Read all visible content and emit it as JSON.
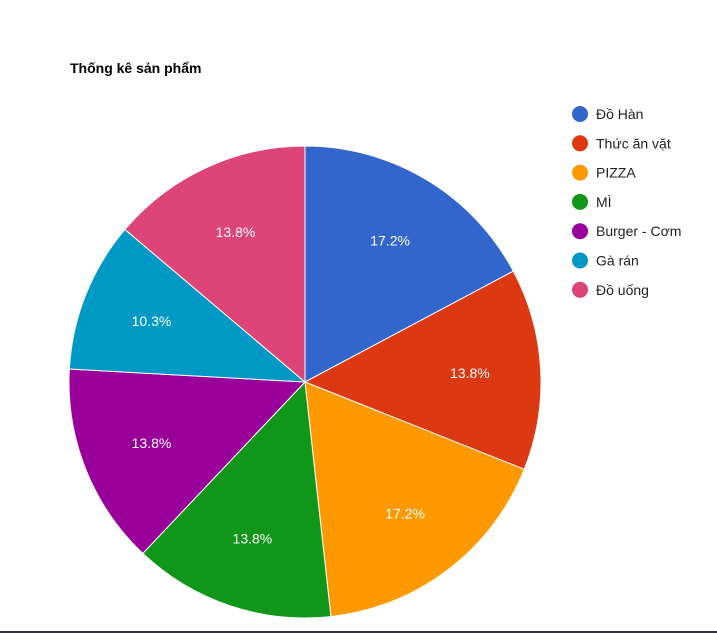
{
  "chart_data": {
    "type": "pie",
    "title": "Thống kê sản phẩm",
    "legend_position": "right",
    "categories": [
      "Đồ Hàn",
      "Thức ăn vặt",
      "PIZZA",
      "MÌ",
      "Burger - Cơm",
      "Gà rán",
      "Đồ uống"
    ],
    "values": [
      17.2,
      13.8,
      17.2,
      13.8,
      13.8,
      10.3,
      13.8
    ],
    "labels": [
      "17.2%",
      "13.8%",
      "17.2%",
      "13.8%",
      "13.8%",
      "10.3%",
      "13.8%"
    ],
    "colors": [
      "#3366cc",
      "#dc3912",
      "#ff9900",
      "#109618",
      "#990099",
      "#0099c6",
      "#dd4477"
    ]
  }
}
